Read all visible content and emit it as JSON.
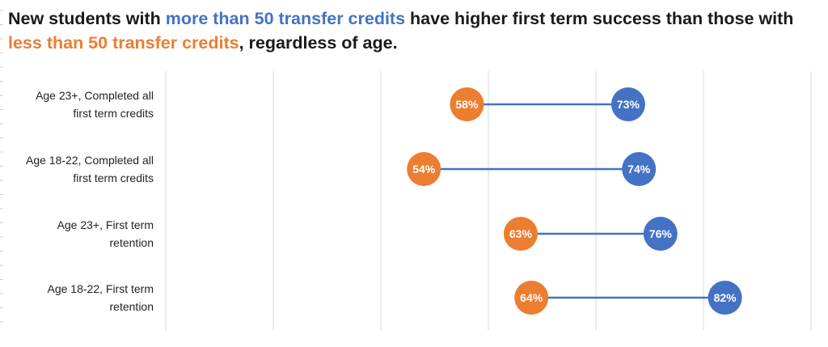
{
  "title": {
    "part1": "New students with ",
    "highlight_more": "more than 50 transfer credits",
    "part2": " have higher first term success than those with ",
    "highlight_less": "less than 50 transfer credits",
    "part3": ", regardless of age."
  },
  "colors": {
    "more": "#4472C4",
    "less": "#ED7D31",
    "grid": "#d9d9d9",
    "label_text": "#ffffff"
  },
  "chart_data": {
    "type": "dumbbell",
    "xlim": [
      30,
      90
    ],
    "gridlines": [
      30,
      40,
      50,
      60,
      70,
      80,
      90
    ],
    "categories": [
      {
        "line1": "Age 23+, Completed all",
        "line2": "first term credits"
      },
      {
        "line1": "Age 18-22, Completed all",
        "line2": "first term credits"
      },
      {
        "line1": "Age 23+, First term",
        "line2": "retention"
      },
      {
        "line1": "Age 18-22, First term",
        "line2": "retention"
      }
    ],
    "series": [
      {
        "name": "less than 50 transfer credits",
        "values": [
          58,
          54,
          63,
          64
        ],
        "labels": [
          "58%",
          "54%",
          "63%",
          "64%"
        ]
      },
      {
        "name": "more than 50 transfer credits",
        "values": [
          73,
          74,
          76,
          82
        ],
        "labels": [
          "73%",
          "74%",
          "76%",
          "82%"
        ]
      }
    ]
  }
}
